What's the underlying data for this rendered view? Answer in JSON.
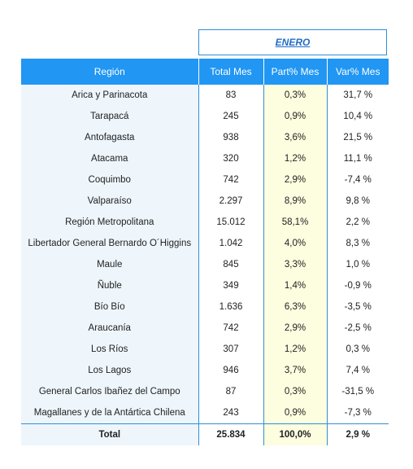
{
  "month": "ENERO",
  "headers": [
    "Región",
    "Total Mes",
    "Part% Mes",
    "Var% Mes"
  ],
  "rows": [
    {
      "region": "Arica y Parinacota",
      "total": "83",
      "part": "0,3%",
      "var": "31,7 %"
    },
    {
      "region": "Tarapacá",
      "total": "245",
      "part": "0,9%",
      "var": "10,4 %"
    },
    {
      "region": "Antofagasta",
      "total": "938",
      "part": "3,6%",
      "var": "21,5 %"
    },
    {
      "region": "Atacama",
      "total": "320",
      "part": "1,2%",
      "var": "11,1 %"
    },
    {
      "region": "Coquimbo",
      "total": "742",
      "part": "2,9%",
      "var": "-7,4 %"
    },
    {
      "region": "Valparaíso",
      "total": "2.297",
      "part": "8,9%",
      "var": "9,8 %"
    },
    {
      "region": "Región Metropolitana",
      "total": "15.012",
      "part": "58,1%",
      "var": "2,2 %"
    },
    {
      "region": "Libertador General Bernardo O´Higgins",
      "total": "1.042",
      "part": "4,0%",
      "var": "8,3 %"
    },
    {
      "region": "Maule",
      "total": "845",
      "part": "3,3%",
      "var": "1,0 %"
    },
    {
      "region": "Ñuble",
      "total": "349",
      "part": "1,4%",
      "var": "-0,9 %"
    },
    {
      "region": "Bío Bío",
      "total": "1.636",
      "part": "6,3%",
      "var": "-3,5 %"
    },
    {
      "region": "Araucanía",
      "total": "742",
      "part": "2,9%",
      "var": "-2,5 %"
    },
    {
      "region": "Los Ríos",
      "total": "307",
      "part": "1,2%",
      "var": "0,3 %"
    },
    {
      "region": "Los Lagos",
      "total": "946",
      "part": "3,7%",
      "var": "7,4 %"
    },
    {
      "region": "General Carlos Ibañez del Campo",
      "total": "87",
      "part": "0,3%",
      "var": "-31,5 %"
    },
    {
      "region": "Magallanes y de la Antártica Chilena",
      "total": "243",
      "part": "0,9%",
      "var": "-7,3 %"
    }
  ],
  "total_row": {
    "region": "Total",
    "total": "25.834",
    "part": "100,0%",
    "var": "2,9 %"
  }
}
